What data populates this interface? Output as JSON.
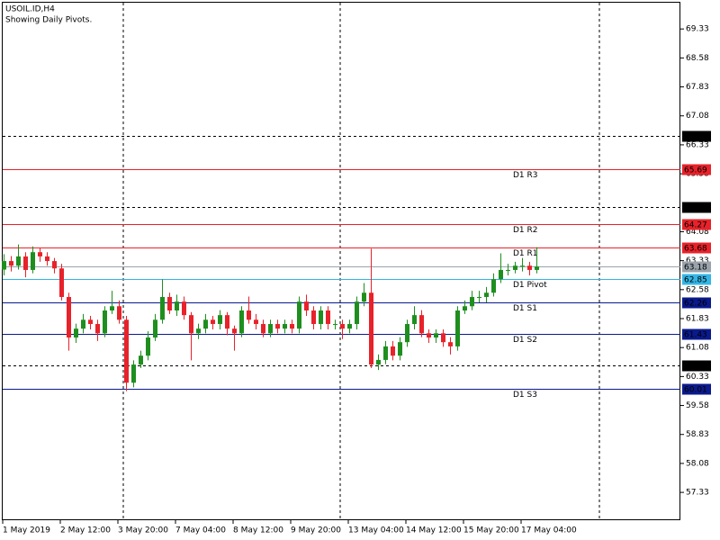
{
  "chart_data": {
    "type": "candlestick",
    "title": "USOIL.ID,H4",
    "subtitle": "Showing Daily Pivots.",
    "categories": [
      "1 May 2019",
      null,
      null,
      null,
      null,
      null,
      null,
      null,
      "2 May 12:00",
      null,
      null,
      null,
      null,
      null,
      null,
      null,
      "3 May 20:00",
      null,
      null,
      null,
      null,
      null,
      null,
      null,
      "7 May 04:00",
      null,
      null,
      null,
      null,
      null,
      null,
      null,
      "8 May 12:00",
      null,
      null,
      null,
      null,
      null,
      null,
      null,
      "9 May 20:00",
      null,
      null,
      null,
      null,
      null,
      null,
      null,
      "13 May 04:00",
      null,
      null,
      null,
      null,
      null,
      null,
      null,
      "14 May 12:00",
      null,
      null,
      null,
      null,
      null,
      null,
      null,
      "15 May 20:00",
      null,
      null,
      null,
      null,
      null,
      null,
      null,
      "17 May 04:00",
      null,
      null
    ],
    "open": [
      63.1,
      63.32,
      63.2,
      63.44,
      63.09,
      63.55,
      63.44,
      63.32,
      63.13,
      62.39,
      61.34,
      61.57,
      61.8,
      61.69,
      61.45,
      62.04,
      62.15,
      61.8,
      60.17,
      60.64,
      60.87,
      61.34,
      61.8,
      62.39,
      62.04,
      62.27,
      61.92,
      61.45,
      61.57,
      61.8,
      61.69,
      61.92,
      61.57,
      61.45,
      62.04,
      61.8,
      61.69,
      61.45,
      61.69,
      61.57,
      61.69,
      61.57,
      62.27,
      62.04,
      61.69,
      62.04,
      61.69,
      61.69,
      61.57,
      61.69,
      62.27,
      62.5,
      60.64,
      60.76,
      61.11,
      60.87,
      61.22,
      61.69,
      61.92,
      61.45,
      61.34,
      61.45,
      61.22,
      61.11,
      62.04,
      62.15,
      62.39,
      62.39,
      62.5,
      62.85,
      63.09,
      63.09,
      63.2,
      63.2,
      63.09
    ],
    "high": [
      63.5,
      63.45,
      63.75,
      63.55,
      63.7,
      63.65,
      63.55,
      63.4,
      63.25,
      62.5,
      61.7,
      61.95,
      61.9,
      61.8,
      62.15,
      62.55,
      62.3,
      61.9,
      60.75,
      61.0,
      61.5,
      61.95,
      62.85,
      62.5,
      62.45,
      62.4,
      62.0,
      61.7,
      61.95,
      61.9,
      62.05,
      62.0,
      61.65,
      62.15,
      62.4,
      61.95,
      61.8,
      61.8,
      61.8,
      61.8,
      61.8,
      62.4,
      62.45,
      62.15,
      62.15,
      62.15,
      61.8,
      61.8,
      61.8,
      62.4,
      62.75,
      63.64,
      60.9,
      61.25,
      61.25,
      61.35,
      61.8,
      62.15,
      62.05,
      61.55,
      61.55,
      61.55,
      61.35,
      62.15,
      62.3,
      62.55,
      62.55,
      62.65,
      63.0,
      63.52,
      63.25,
      63.3,
      63.4,
      63.3,
      63.68
    ],
    "low": [
      62.95,
      63.05,
      63.1,
      62.9,
      63.0,
      63.3,
      63.2,
      63.0,
      62.3,
      61.0,
      61.2,
      61.45,
      61.55,
      61.25,
      61.35,
      61.95,
      61.7,
      59.95,
      60.05,
      60.55,
      60.75,
      61.25,
      61.7,
      61.95,
      61.9,
      61.8,
      60.75,
      61.3,
      61.45,
      61.55,
      61.55,
      61.4,
      61.0,
      61.35,
      61.7,
      61.55,
      61.35,
      61.35,
      61.45,
      61.45,
      61.45,
      61.45,
      61.9,
      61.55,
      61.55,
      61.55,
      61.55,
      61.3,
      61.45,
      61.55,
      62.15,
      60.55,
      60.5,
      60.65,
      60.75,
      60.75,
      61.1,
      61.55,
      61.35,
      61.2,
      61.2,
      61.1,
      60.9,
      61.0,
      61.95,
      62.05,
      62.25,
      62.25,
      62.4,
      62.75,
      62.95,
      63.0,
      63.05,
      62.95,
      63.0
    ],
    "close": [
      63.32,
      63.2,
      63.44,
      63.09,
      63.55,
      63.44,
      63.32,
      63.13,
      62.39,
      61.34,
      61.57,
      61.8,
      61.69,
      61.45,
      62.04,
      62.15,
      61.8,
      60.17,
      60.64,
      60.87,
      61.34,
      61.8,
      62.39,
      62.04,
      62.27,
      61.92,
      61.45,
      61.57,
      61.8,
      61.69,
      61.92,
      61.57,
      61.45,
      62.04,
      61.8,
      61.69,
      61.45,
      61.69,
      61.57,
      61.69,
      61.57,
      62.27,
      62.04,
      61.69,
      62.04,
      61.69,
      61.69,
      61.57,
      61.69,
      62.27,
      62.5,
      60.64,
      60.76,
      61.11,
      60.87,
      61.22,
      61.69,
      61.92,
      61.45,
      61.34,
      61.45,
      61.22,
      61.11,
      62.04,
      62.15,
      62.39,
      62.39,
      62.5,
      62.85,
      63.09,
      63.09,
      63.2,
      63.2,
      63.09,
      63.18
    ],
    "up_color": "#1e8f1e",
    "down_color": "#e8222a",
    "ylim": [
      56.61,
      70.08
    ],
    "yticks": [
      69.33,
      68.58,
      67.83,
      67.08,
      66.33,
      65.58,
      64.08,
      63.33,
      62.58,
      61.83,
      61.08,
      60.33,
      59.58,
      58.83,
      58.08,
      57.33
    ],
    "levels": [
      {
        "value": 66.56,
        "color": "#000000",
        "style": "dashed"
      },
      {
        "label": "D1 R3",
        "value": 65.69,
        "color": "#e8222a",
        "style": "solid"
      },
      {
        "value": 64.73,
        "color": "#000000",
        "style": "dashed"
      },
      {
        "label": "D1 R2",
        "value": 64.27,
        "color": "#e8222a",
        "style": "solid"
      },
      {
        "label": "D1 R1",
        "value": 63.68,
        "color": "#e8222a",
        "style": "solid"
      },
      {
        "value": 63.18,
        "color": "#9aa3ab",
        "style": "solid"
      },
      {
        "label": "D1 Pivot",
        "value": 62.85,
        "color": "#33b5e5",
        "style": "solid"
      },
      {
        "label": "D1 S1",
        "value": 62.26,
        "color": "#0a1a8c",
        "style": "solid"
      },
      {
        "label": "D1 S2",
        "value": 61.43,
        "color": "#0a1a8c",
        "style": "solid"
      },
      {
        "value": 60.61,
        "color": "#000000",
        "style": "dashed"
      },
      {
        "label": "D1 S3",
        "value": 60.01,
        "color": "#0a1a8c",
        "style": "solid"
      }
    ]
  }
}
